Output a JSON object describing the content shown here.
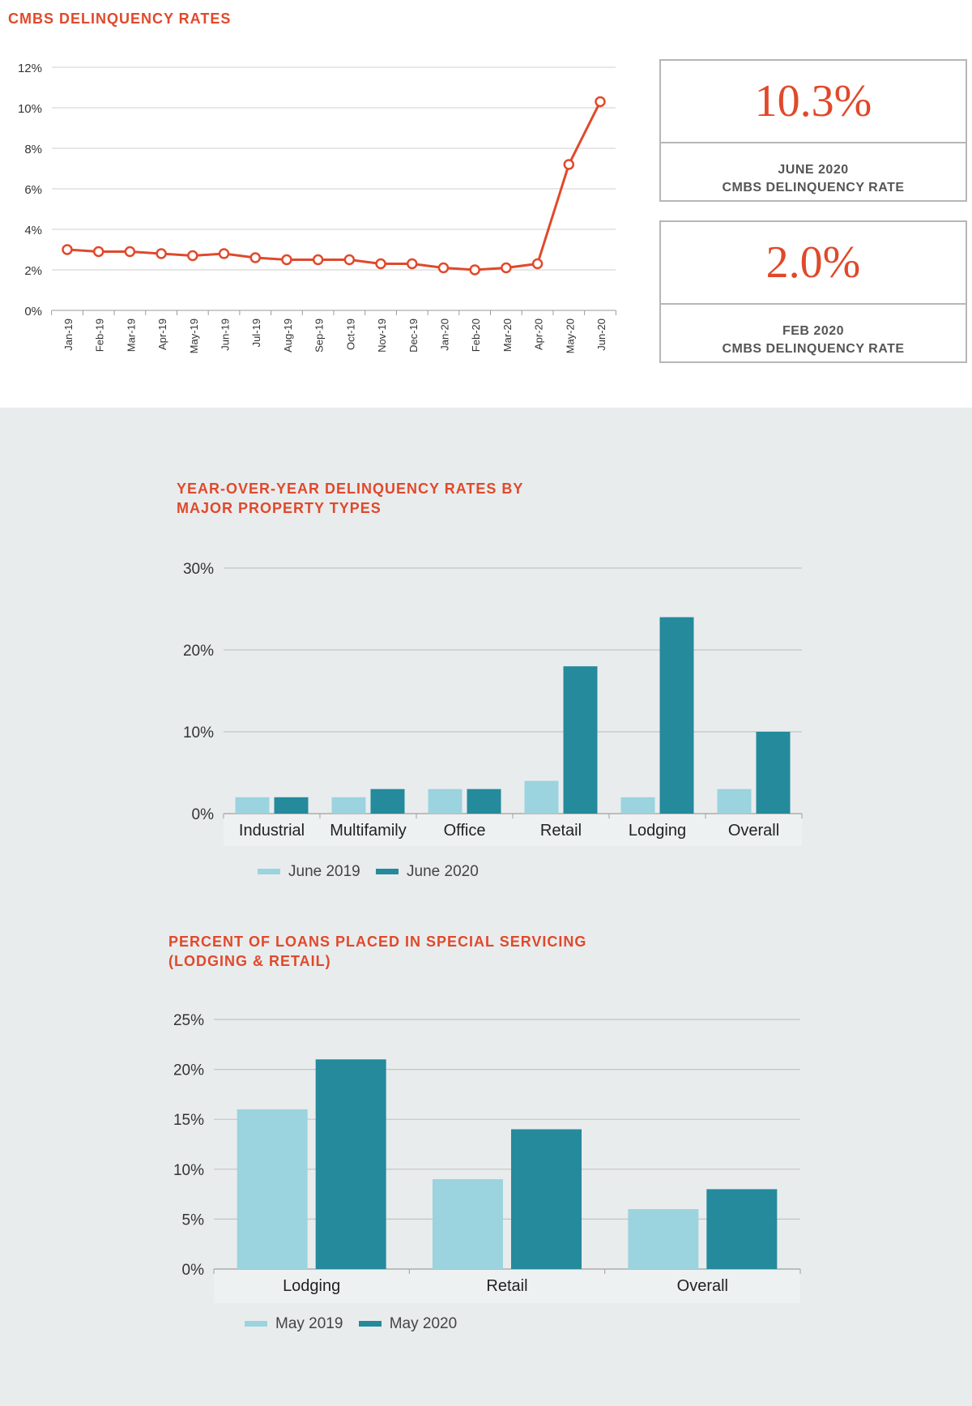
{
  "colors": {
    "accent": "#e0492b",
    "light_bar": "#9bd3de",
    "dark_bar": "#248a9c",
    "grid": "#c8c8c8",
    "panel_bg": "#e9eced"
  },
  "stats": [
    {
      "value": "10.3%",
      "label_line1": "JUNE 2020",
      "label_line2": "CMBS DELINQUENCY RATE"
    },
    {
      "value": "2.0%",
      "label_line1": "FEB 2020",
      "label_line2": "CMBS DELINQUENCY RATE"
    }
  ],
  "chart_data": [
    {
      "type": "line",
      "title": "CMBS DELINQUENCY RATES",
      "categories": [
        "Jan-19",
        "Feb-19",
        "Mar-19",
        "Apr-19",
        "May-19",
        "Jun-19",
        "Jul-19",
        "Aug-19",
        "Sep-19",
        "Oct-19",
        "Nov-19",
        "Dec-19",
        "Jan-20",
        "Feb-20",
        "Mar-20",
        "Apr-20",
        "May-20",
        "Jun-20"
      ],
      "values": [
        3.0,
        2.9,
        2.9,
        2.8,
        2.7,
        2.8,
        2.6,
        2.5,
        2.5,
        2.5,
        2.3,
        2.3,
        2.1,
        2.0,
        2.1,
        2.3,
        7.2,
        10.3
      ],
      "yticks": [
        "0%",
        "2%",
        "4%",
        "6%",
        "8%",
        "10%",
        "12%"
      ],
      "ylim": [
        0,
        12
      ],
      "grid": true
    },
    {
      "type": "bar",
      "title_line1": "YEAR-OVER-YEAR DELINQUENCY RATES BY",
      "title_line2": "MAJOR PROPERTY TYPES",
      "categories": [
        "Industrial",
        "Multifamily",
        "Office",
        "Retail",
        "Lodging",
        "Overall"
      ],
      "series": [
        {
          "name": "June 2019",
          "values": [
            2,
            2,
            3,
            4,
            2,
            3
          ]
        },
        {
          "name": "June 2020",
          "values": [
            2,
            3,
            3,
            18,
            24,
            10
          ]
        }
      ],
      "yticks": [
        "0%",
        "10%",
        "20%",
        "30%"
      ],
      "ylim": [
        0,
        30
      ],
      "grid": true,
      "legend": "bottom-left"
    },
    {
      "type": "bar",
      "title_line1": "PERCENT OF LOANS PLACED IN SPECIAL SERVICING",
      "title_line2": "(LODGING & RETAIL)",
      "categories": [
        "Lodging",
        "Retail",
        "Overall"
      ],
      "series": [
        {
          "name": "May 2019",
          "values": [
            16,
            9,
            6
          ]
        },
        {
          "name": "May 2020",
          "values": [
            21,
            14,
            8
          ]
        }
      ],
      "yticks": [
        "0%",
        "5%",
        "10%",
        "15%",
        "20%",
        "25%"
      ],
      "ylim": [
        0,
        25
      ],
      "grid": true,
      "legend": "bottom-left"
    }
  ]
}
